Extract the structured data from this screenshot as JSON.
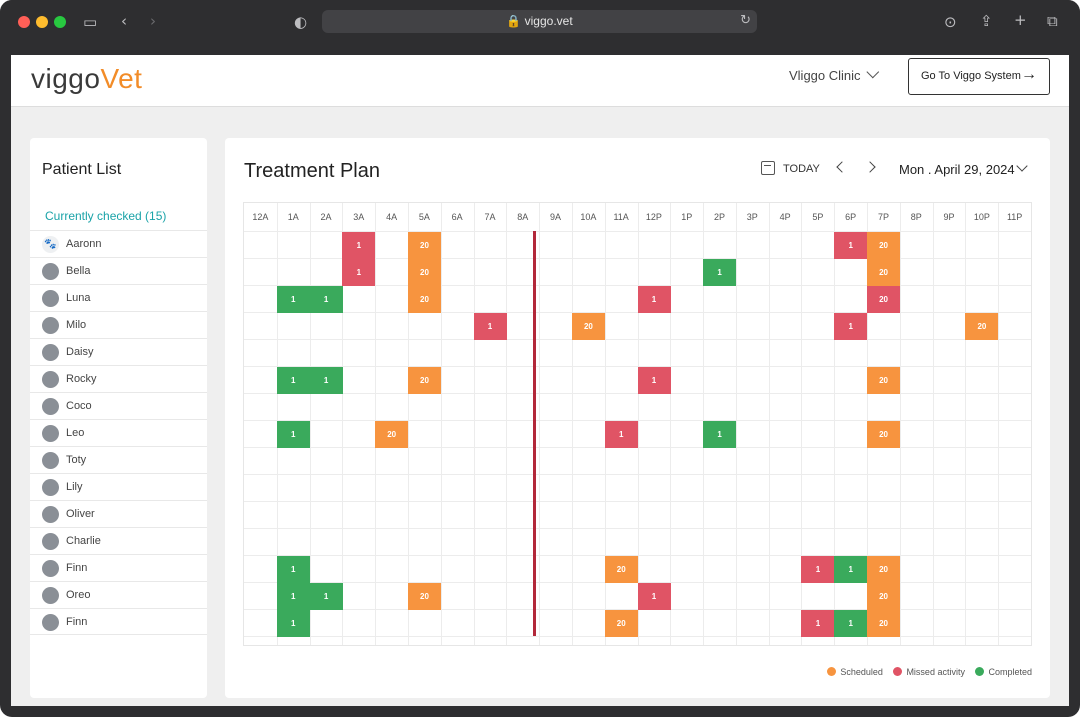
{
  "browser": {
    "url": "viggo.vet"
  },
  "header": {
    "logo_part1": "viggo",
    "logo_part2": "Vet",
    "clinic_name": "Vliggo Clinic",
    "goto_label": "Go To Viggo System"
  },
  "sidebar": {
    "title": "Patient List",
    "subtitle": "Currently checked (15)",
    "patients": [
      "Aaronn",
      "Bella",
      "Luna",
      "Milo",
      "Daisy",
      "Rocky",
      "Coco",
      "Leo",
      "Toty",
      "Lily",
      "Oliver",
      "Charlie",
      "Finn",
      "Oreo",
      "Finn"
    ]
  },
  "main": {
    "title": "Treatment Plan",
    "today_label": "TODAY",
    "date": "Mon . April 29, 2024"
  },
  "colors": {
    "scheduled": "#f7943f",
    "missed": "#e05465",
    "completed": "#3aaa5c",
    "now_line": "#b2283a"
  },
  "schedule": {
    "hours": [
      "12A",
      "1A",
      "2A",
      "3A",
      "4A",
      "5A",
      "6A",
      "7A",
      "8A",
      "9A",
      "10A",
      "11A",
      "12P",
      "1P",
      "2P",
      "3P",
      "4P",
      "5P",
      "6P",
      "7P",
      "8P",
      "9P",
      "10P",
      "11P"
    ],
    "current_hour_index": 9,
    "rows": [
      [
        {
          "h": 3,
          "v": "1",
          "s": "missed"
        },
        {
          "h": 5,
          "v": "20",
          "s": "scheduled"
        },
        {
          "h": 18,
          "v": "1",
          "s": "missed"
        },
        {
          "h": 19,
          "v": "20",
          "s": "scheduled"
        }
      ],
      [
        {
          "h": 3,
          "v": "1",
          "s": "missed"
        },
        {
          "h": 5,
          "v": "20",
          "s": "scheduled"
        },
        {
          "h": 14,
          "v": "1",
          "s": "completed"
        },
        {
          "h": 19,
          "v": "20",
          "s": "scheduled"
        }
      ],
      [
        {
          "h": 1,
          "v": "1",
          "s": "completed"
        },
        {
          "h": 2,
          "v": "1",
          "s": "completed"
        },
        {
          "h": 5,
          "v": "20",
          "s": "scheduled"
        },
        {
          "h": 12,
          "v": "1",
          "s": "missed"
        },
        {
          "h": 19,
          "v": "20",
          "s": "missed"
        }
      ],
      [
        {
          "h": 7,
          "v": "1",
          "s": "missed"
        },
        {
          "h": 10,
          "v": "20",
          "s": "scheduled"
        },
        {
          "h": 18,
          "v": "1",
          "s": "missed"
        },
        {
          "h": 22,
          "v": "20",
          "s": "scheduled"
        }
      ],
      [],
      [
        {
          "h": 1,
          "v": "1",
          "s": "completed"
        },
        {
          "h": 2,
          "v": "1",
          "s": "completed"
        },
        {
          "h": 5,
          "v": "20",
          "s": "scheduled"
        },
        {
          "h": 12,
          "v": "1",
          "s": "missed"
        },
        {
          "h": 19,
          "v": "20",
          "s": "scheduled"
        }
      ],
      [],
      [
        {
          "h": 1,
          "v": "1",
          "s": "completed"
        },
        {
          "h": 4,
          "v": "20",
          "s": "scheduled"
        },
        {
          "h": 11,
          "v": "1",
          "s": "missed"
        },
        {
          "h": 14,
          "v": "1",
          "s": "completed"
        },
        {
          "h": 19,
          "v": "20",
          "s": "scheduled"
        }
      ],
      [],
      [],
      [],
      [],
      [
        {
          "h": 1,
          "v": "1",
          "s": "completed"
        },
        {
          "h": 11,
          "v": "20",
          "s": "scheduled"
        },
        {
          "h": 17,
          "v": "1",
          "s": "missed"
        },
        {
          "h": 18,
          "v": "1",
          "s": "completed"
        },
        {
          "h": 19,
          "v": "20",
          "s": "scheduled"
        }
      ],
      [
        {
          "h": 1,
          "v": "1",
          "s": "completed"
        },
        {
          "h": 2,
          "v": "1",
          "s": "completed"
        },
        {
          "h": 5,
          "v": "20",
          "s": "scheduled"
        },
        {
          "h": 12,
          "v": "1",
          "s": "missed"
        },
        {
          "h": 19,
          "v": "20",
          "s": "scheduled"
        }
      ],
      [
        {
          "h": 1,
          "v": "1",
          "s": "completed"
        },
        {
          "h": 11,
          "v": "20",
          "s": "scheduled"
        },
        {
          "h": 17,
          "v": "1",
          "s": "missed"
        },
        {
          "h": 18,
          "v": "1",
          "s": "completed"
        },
        {
          "h": 19,
          "v": "20",
          "s": "scheduled"
        }
      ]
    ]
  },
  "legend": {
    "scheduled": "Scheduled",
    "missed": "Missed activity",
    "completed": "Completed"
  }
}
